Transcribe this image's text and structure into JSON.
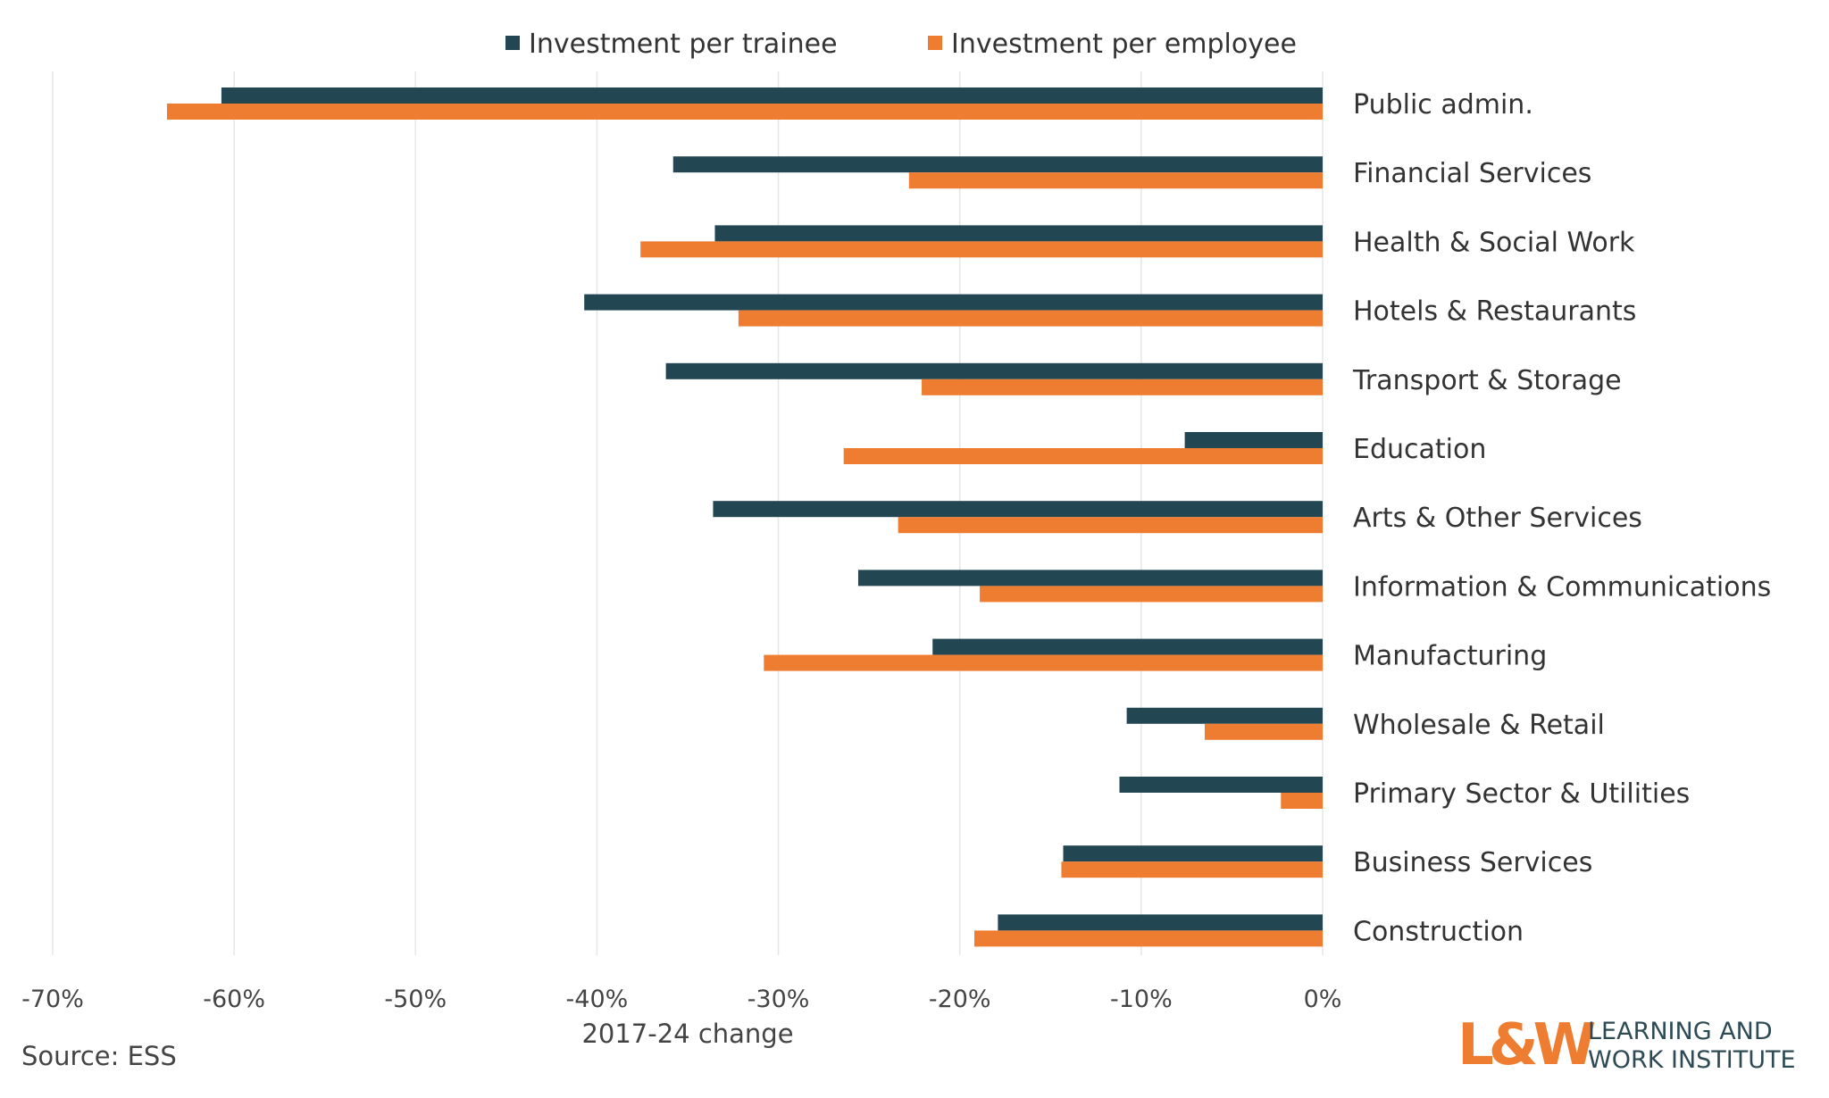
{
  "chart_data": {
    "type": "bar",
    "orientation": "horizontal",
    "categories": [
      "Public admin.",
      "Financial Services",
      "Health & Social Work",
      "Hotels & Restaurants",
      "Transport & Storage",
      "Education",
      "Arts & Other Services",
      "Information & Communications",
      "Manufacturing",
      "Wholesale & Retail",
      "Primary Sector & Utilities",
      "Business Services",
      "Construction"
    ],
    "series": [
      {
        "name": "Investment per trainee",
        "color": "#234752",
        "values": [
          -60.7,
          -35.8,
          -33.5,
          -40.7,
          -36.2,
          -7.6,
          -33.6,
          -25.6,
          -21.5,
          -10.8,
          -11.2,
          -14.3,
          -17.9
        ]
      },
      {
        "name": "Investment per employee",
        "color": "#ee7d32",
        "values": [
          -63.7,
          -22.8,
          -37.6,
          -32.2,
          -22.1,
          -26.4,
          -23.4,
          -18.9,
          -30.8,
          -6.5,
          -2.3,
          -14.4,
          -19.2
        ]
      }
    ],
    "xlim": [
      -70,
      0
    ],
    "x_ticks": [
      -70,
      -60,
      -50,
      -40,
      -30,
      -20,
      -10,
      0
    ],
    "x_tick_labels": [
      "-70%",
      "-60%",
      "-50%",
      "-40%",
      "-30%",
      "-20%",
      "-10%",
      "0%"
    ],
    "xlabel": "2017-24 change",
    "grid": true,
    "legend_position": "top"
  },
  "source": "Source: ESS",
  "logo": {
    "mark": "L&W",
    "line1": "LEARNING AND",
    "line2": "WORK INSTITUTE"
  }
}
